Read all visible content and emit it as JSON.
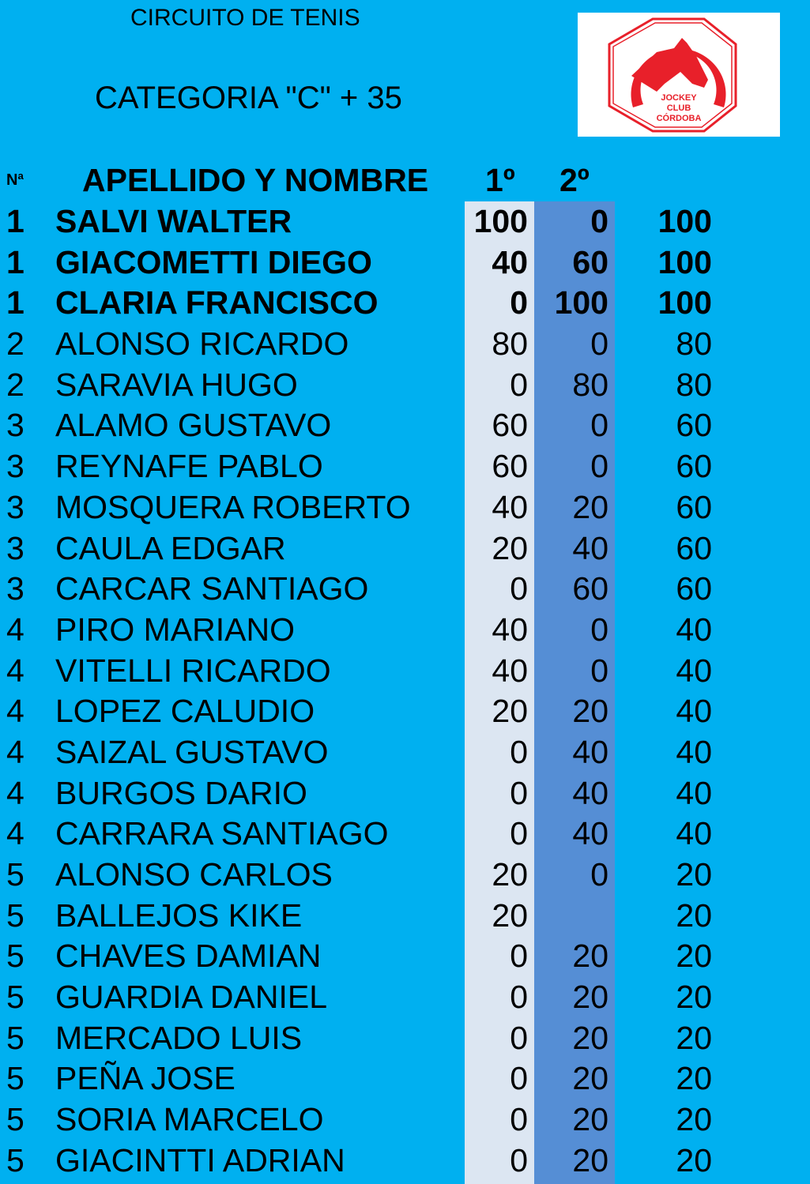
{
  "header": {
    "subtitle": "CIRCUITO DE TENIS",
    "title": "CATEGORIA \"C\" + 35",
    "logo_text": "JOCKEY CLUB CÓRDOBA"
  },
  "columns": {
    "rank": "Nª",
    "name": "APELLIDO Y NOMBRE",
    "first": "1º",
    "second": "2º"
  },
  "colors": {
    "background": "#00B0F0",
    "col_first": "#DCE6F2",
    "col_second": "#558ED5",
    "logo_red": "#E8202A"
  },
  "rows": [
    {
      "rank": "1",
      "name": "SALVI WALTER",
      "first": "100",
      "second": "0",
      "total": "100",
      "bold": true
    },
    {
      "rank": "1",
      "name": "GIACOMETTI DIEGO",
      "first": "40",
      "second": "60",
      "total": "100",
      "bold": true
    },
    {
      "rank": "1",
      "name": "CLARIA FRANCISCO",
      "first": "0",
      "second": "100",
      "total": "100",
      "bold": true
    },
    {
      "rank": "2",
      "name": "ALONSO RICARDO",
      "first": "80",
      "second": "0",
      "total": "80"
    },
    {
      "rank": "2",
      "name": "SARAVIA HUGO",
      "first": "0",
      "second": "80",
      "total": "80"
    },
    {
      "rank": "3",
      "name": "ALAMO GUSTAVO",
      "first": "60",
      "second": "0",
      "total": "60"
    },
    {
      "rank": "3",
      "name": "REYNAFE PABLO",
      "first": "60",
      "second": "0",
      "total": "60"
    },
    {
      "rank": "3",
      "name": "MOSQUERA ROBERTO",
      "first": "40",
      "second": "20",
      "total": "60"
    },
    {
      "rank": "3",
      "name": "CAULA EDGAR",
      "first": "20",
      "second": "40",
      "total": "60"
    },
    {
      "rank": "3",
      "name": "CARCAR SANTIAGO",
      "first": "0",
      "second": "60",
      "total": "60"
    },
    {
      "rank": "4",
      "name": "PIRO MARIANO",
      "first": "40",
      "second": "0",
      "total": "40"
    },
    {
      "rank": "4",
      "name": "VITELLI RICARDO",
      "first": "40",
      "second": "0",
      "total": "40"
    },
    {
      "rank": "4",
      "name": "LOPEZ CALUDIO",
      "first": "20",
      "second": "20",
      "total": "40"
    },
    {
      "rank": "4",
      "name": "SAIZAL GUSTAVO",
      "first": "0",
      "second": "40",
      "total": "40"
    },
    {
      "rank": "4",
      "name": "BURGOS DARIO",
      "first": "0",
      "second": "40",
      "total": "40"
    },
    {
      "rank": "4",
      "name": "CARRARA SANTIAGO",
      "first": "0",
      "second": "40",
      "total": "40"
    },
    {
      "rank": "5",
      "name": "ALONSO CARLOS",
      "first": "20",
      "second": "0",
      "total": "20"
    },
    {
      "rank": "5",
      "name": "BALLEJOS KIKE",
      "first": "20",
      "second": "",
      "total": "20"
    },
    {
      "rank": "5",
      "name": "CHAVES DAMIAN",
      "first": "0",
      "second": "20",
      "total": "20"
    },
    {
      "rank": "5",
      "name": "GUARDIA DANIEL",
      "first": "0",
      "second": "20",
      "total": "20"
    },
    {
      "rank": "5",
      "name": "MERCADO LUIS",
      "first": "0",
      "second": "20",
      "total": "20"
    },
    {
      "rank": "5",
      "name": "PEÑA JOSE",
      "first": "0",
      "second": "20",
      "total": "20"
    },
    {
      "rank": "5",
      "name": "SORIA MARCELO",
      "first": "0",
      "second": "20",
      "total": "20"
    },
    {
      "rank": "5",
      "name": "GIACINTTI ADRIAN",
      "first": "0",
      "second": "20",
      "total": "20"
    }
  ]
}
